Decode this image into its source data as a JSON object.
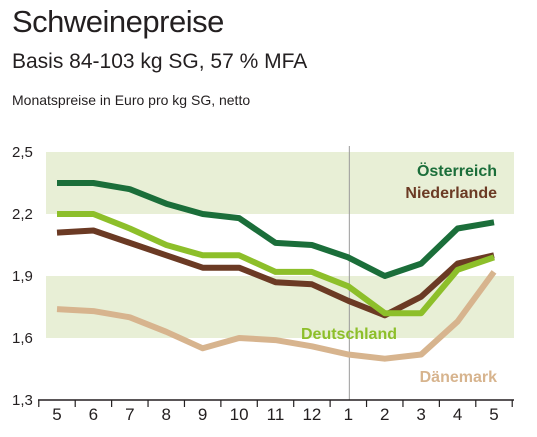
{
  "header": {
    "title": "Schweinepreise",
    "subtitle": "Basis 84-103 kg SG, 57 % MFA",
    "note": "Monatspreise in Euro pro kg SG, netto"
  },
  "chart_data": {
    "type": "line",
    "title": "Schweinepreise",
    "subtitle": "Basis 84-103 kg SG, 57 % MFA",
    "ylabel": "Monatspreise in Euro pro kg SG, netto",
    "xlabel": "",
    "categories": [
      "5",
      "6",
      "7",
      "8",
      "9",
      "10",
      "11",
      "12",
      "1",
      "2",
      "3",
      "4",
      "5"
    ],
    "ylim": [
      1.3,
      2.5
    ],
    "yticks": [
      "2,5",
      "2,2",
      "1,9",
      "1,6",
      "1,3"
    ],
    "ytick_values": [
      2.5,
      2.2,
      1.9,
      1.6,
      1.3
    ],
    "year_break_after_category_index": 7,
    "background_bands": [
      [
        1.6,
        1.9
      ],
      [
        2.2,
        2.5
      ]
    ],
    "series": [
      {
        "name": "Österreich",
        "color": "#1b6e3a",
        "values": [
          2.35,
          2.35,
          2.32,
          2.25,
          2.2,
          2.18,
          2.06,
          2.05,
          1.99,
          1.9,
          1.96,
          2.13,
          2.16
        ]
      },
      {
        "name": "Niederlande",
        "color": "#6b3a24",
        "values": [
          2.11,
          2.12,
          2.06,
          2.0,
          1.94,
          1.94,
          1.87,
          1.86,
          1.78,
          1.71,
          1.8,
          1.96,
          2.0
        ]
      },
      {
        "name": "Deutschland",
        "color": "#8dbf2a",
        "values": [
          2.2,
          2.2,
          2.13,
          2.05,
          2.0,
          2.0,
          1.92,
          1.92,
          1.85,
          1.72,
          1.72,
          1.93,
          1.99
        ]
      },
      {
        "name": "Dänemark",
        "color": "#d7b48e",
        "values": [
          1.74,
          1.73,
          1.7,
          1.63,
          1.55,
          1.6,
          1.59,
          1.56,
          1.52,
          1.5,
          1.52,
          1.68,
          1.92
        ]
      }
    ],
    "colors": {
      "band": "#e8efd6",
      "axis": "#231f20",
      "divider": "#9a9a9a"
    }
  }
}
